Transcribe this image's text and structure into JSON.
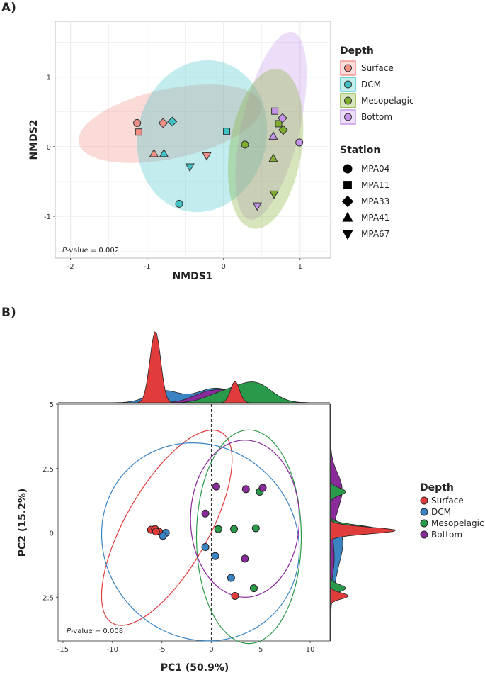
{
  "chart_data": [
    {
      "panel_label": "A)",
      "type": "scatter",
      "xlabel": "NMDS1",
      "ylabel": "NMDS2",
      "xlim": [
        -2.2,
        1.4
      ],
      "ylim": [
        -1.6,
        1.8
      ],
      "xticks": [
        -2,
        -1,
        0,
        1
      ],
      "yticks": [
        -1,
        0,
        1
      ],
      "grid": true,
      "annotation": {
        "italic": "P",
        "text": "-value = 0.002"
      },
      "legend_depth": {
        "title": "Depth",
        "items": [
          {
            "name": "Surface",
            "color": "#f08f86"
          },
          {
            "name": "DCM",
            "color": "#41c3c6"
          },
          {
            "name": "Mesopelagic",
            "color": "#7fae2e"
          },
          {
            "name": "Bottom",
            "color": "#c494e8"
          }
        ]
      },
      "legend_station": {
        "title": "Station",
        "items": [
          {
            "name": "MPA04",
            "shape": "circle"
          },
          {
            "name": "MPA11",
            "shape": "square"
          },
          {
            "name": "MPA33",
            "shape": "diamond"
          },
          {
            "name": "MPA41",
            "shape": "triangle"
          },
          {
            "name": "MPA67",
            "shape": "triangle-down"
          }
        ]
      },
      "ellipses": [
        {
          "group": "Surface",
          "cx": -0.7,
          "cy": 0.33,
          "rx": 1.22,
          "ry": 0.5,
          "angle": -12
        },
        {
          "group": "DCM",
          "cx": -0.28,
          "cy": 0.15,
          "rx": 0.84,
          "ry": 1.1,
          "angle": 14
        },
        {
          "group": "Bottom",
          "cx": 0.62,
          "cy": 0.3,
          "rx": 0.38,
          "ry": 1.38,
          "angle": 13
        },
        {
          "group": "Mesopelagic",
          "cx": 0.55,
          "cy": -0.03,
          "rx": 0.47,
          "ry": 1.16,
          "angle": 9
        }
      ],
      "points": [
        {
          "x": -1.13,
          "y": 0.34,
          "depth": "Surface",
          "station": "MPA04"
        },
        {
          "x": -1.11,
          "y": 0.21,
          "depth": "Surface",
          "station": "MPA11"
        },
        {
          "x": -0.79,
          "y": 0.34,
          "depth": "Surface",
          "station": "MPA33"
        },
        {
          "x": -0.91,
          "y": -0.1,
          "depth": "Surface",
          "station": "MPA41"
        },
        {
          "x": -0.22,
          "y": -0.13,
          "depth": "Surface",
          "station": "MPA67"
        },
        {
          "x": -0.58,
          "y": -0.82,
          "depth": "DCM",
          "station": "MPA04"
        },
        {
          "x": 0.04,
          "y": 0.22,
          "depth": "DCM",
          "station": "MPA11"
        },
        {
          "x": -0.67,
          "y": 0.36,
          "depth": "DCM",
          "station": "MPA33"
        },
        {
          "x": -0.78,
          "y": -0.1,
          "depth": "DCM",
          "station": "MPA41"
        },
        {
          "x": -0.44,
          "y": -0.29,
          "depth": "DCM",
          "station": "MPA67"
        },
        {
          "x": 0.28,
          "y": 0.03,
          "depth": "Mesopelagic",
          "station": "MPA04"
        },
        {
          "x": 0.72,
          "y": 0.33,
          "depth": "Mesopelagic",
          "station": "MPA11"
        },
        {
          "x": 0.78,
          "y": 0.24,
          "depth": "Mesopelagic",
          "station": "MPA33"
        },
        {
          "x": 0.65,
          "y": -0.17,
          "depth": "Mesopelagic",
          "station": "MPA41"
        },
        {
          "x": 0.66,
          "y": -0.68,
          "depth": "Mesopelagic",
          "station": "MPA67"
        },
        {
          "x": 0.99,
          "y": 0.06,
          "depth": "Bottom",
          "station": "MPA04"
        },
        {
          "x": 0.67,
          "y": 0.51,
          "depth": "Bottom",
          "station": "MPA11"
        },
        {
          "x": 0.77,
          "y": 0.41,
          "depth": "Bottom",
          "station": "MPA33"
        },
        {
          "x": 0.65,
          "y": 0.15,
          "depth": "Bottom",
          "station": "MPA41"
        },
        {
          "x": 0.44,
          "y": -0.85,
          "depth": "Bottom",
          "station": "MPA67"
        }
      ]
    },
    {
      "panel_label": "B)",
      "type": "scatter",
      "xlabel": "PC1 (50.9%)",
      "ylabel": "PC2 (15.2%)",
      "xlim": [
        -15.5,
        12
      ],
      "ylim": [
        -4.2,
        5
      ],
      "xticks": [
        -15,
        -10,
        -5,
        0,
        5,
        10
      ],
      "yticks": [
        -2.5,
        0,
        2.5,
        5
      ],
      "xticklabels": [
        "-15",
        "-10",
        "-5",
        "0",
        "5",
        "10"
      ],
      "yticklabels": [
        "-2.5",
        "0",
        "2.5",
        "5"
      ],
      "grid": false,
      "reference_lines": {
        "x": 0,
        "y": 0
      },
      "annotation": {
        "italic": "P",
        "text": "-value = 0.008"
      },
      "legend": {
        "title": "Depth",
        "items": [
          {
            "name": "Surface",
            "color": "#e03c3c"
          },
          {
            "name": "DCM",
            "color": "#3a84c4"
          },
          {
            "name": "Mesopelagic",
            "color": "#2a9a4a"
          },
          {
            "name": "Bottom",
            "color": "#8a2b9a"
          }
        ]
      },
      "ellipses": [
        {
          "group": "Surface",
          "cx": -4.5,
          "cy": 0.2,
          "rx": 11.1,
          "ry": 0.85,
          "angle": -34
        },
        {
          "group": "DCM",
          "cx": -1.1,
          "cy": -0.35,
          "rx": 9.6,
          "ry": 2.1,
          "angle": -21
        },
        {
          "group": "Mesopelagic",
          "cx": 3.8,
          "cy": -0.15,
          "rx": 5.3,
          "ry": 4.15,
          "angle": 0
        },
        {
          "group": "Bottom",
          "cx": 3.4,
          "cy": 0.55,
          "rx": 5.5,
          "ry": 3.05,
          "angle": 0
        }
      ],
      "points": [
        {
          "x": -6.1,
          "y": 0.12,
          "depth": "Surface"
        },
        {
          "x": -5.7,
          "y": 0.15,
          "depth": "Surface"
        },
        {
          "x": -5.3,
          "y": 0.05,
          "depth": "Surface"
        },
        {
          "x": -5.6,
          "y": 0.05,
          "depth": "Surface"
        },
        {
          "x": 2.4,
          "y": -2.45,
          "depth": "Surface"
        },
        {
          "x": -4.6,
          "y": 0.0,
          "depth": "DCM"
        },
        {
          "x": -4.9,
          "y": -0.12,
          "depth": "DCM"
        },
        {
          "x": -0.6,
          "y": -0.55,
          "depth": "DCM"
        },
        {
          "x": 0.4,
          "y": -0.9,
          "depth": "DCM"
        },
        {
          "x": 2.0,
          "y": -1.75,
          "depth": "DCM"
        },
        {
          "x": 0.7,
          "y": 0.15,
          "depth": "Mesopelagic"
        },
        {
          "x": 2.3,
          "y": 0.15,
          "depth": "Mesopelagic"
        },
        {
          "x": 4.5,
          "y": 0.18,
          "depth": "Mesopelagic"
        },
        {
          "x": 4.9,
          "y": 1.6,
          "depth": "Mesopelagic"
        },
        {
          "x": 4.3,
          "y": -2.15,
          "depth": "Mesopelagic"
        },
        {
          "x": 0.5,
          "y": 1.8,
          "depth": "Bottom"
        },
        {
          "x": 3.5,
          "y": 1.7,
          "depth": "Bottom"
        },
        {
          "x": 5.2,
          "y": 1.75,
          "depth": "Bottom"
        },
        {
          "x": -0.6,
          "y": 0.75,
          "depth": "Bottom"
        },
        {
          "x": 3.4,
          "y": -1.0,
          "depth": "Bottom"
        }
      ],
      "marginal_density": true
    }
  ]
}
